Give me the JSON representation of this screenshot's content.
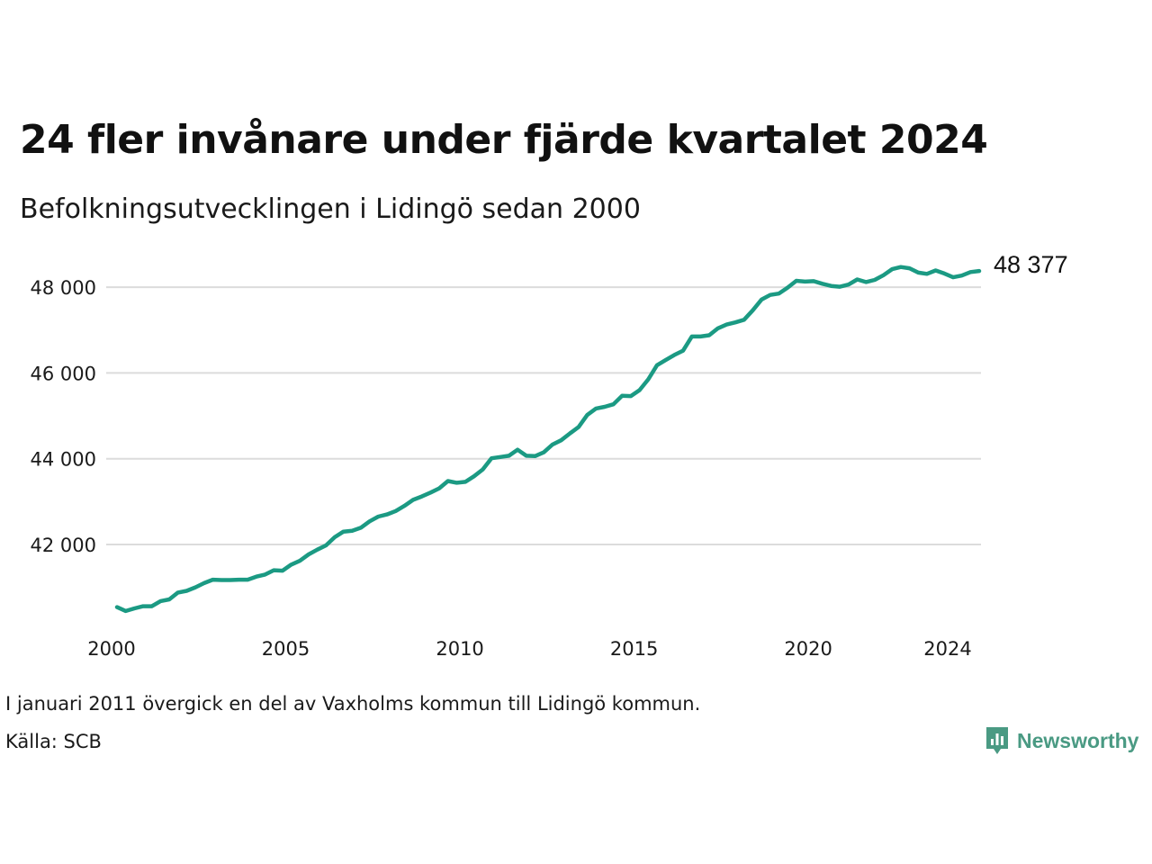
{
  "title": "24 fler invånare under fjärde kvartalet 2024",
  "subtitle": "Befolkningsutvecklingen i Lidingö sedan 2000",
  "note": "I januari 2011 övergick en del av Vaxholms kommun till Lidingö kommun.",
  "source": "Källa: SCB",
  "brand": {
    "name": "Newsworthy",
    "icon": "newsworthy-logo-icon",
    "color": "#4a9a83"
  },
  "chart_data": {
    "type": "line",
    "x_ticks": [
      "2000",
      "2005",
      "2010",
      "2015",
      "2020",
      "2024"
    ],
    "y_ticks": [
      "42 000",
      "44 000",
      "46 000",
      "48 000"
    ],
    "ylim": [
      40200,
      49000
    ],
    "grid": true,
    "line_color": "#1b9a83",
    "end_label": "48 377",
    "series": [
      {
        "x": [
          "2000Q1",
          "2000Q2",
          "2000Q3",
          "2000Q4",
          "2001Q1",
          "2001Q2",
          "2001Q3",
          "2001Q4",
          "2002Q1",
          "2002Q2",
          "2002Q3",
          "2002Q4",
          "2003Q1",
          "2003Q2",
          "2003Q3",
          "2003Q4",
          "2004Q1",
          "2004Q2",
          "2004Q3",
          "2004Q4",
          "2005Q1",
          "2005Q2",
          "2005Q3",
          "2005Q4",
          "2006Q1",
          "2006Q2",
          "2006Q3",
          "2006Q4",
          "2007Q1",
          "2007Q2",
          "2007Q3",
          "2007Q4",
          "2008Q1",
          "2008Q2",
          "2008Q3",
          "2008Q4",
          "2009Q1",
          "2009Q2",
          "2009Q3",
          "2009Q4",
          "2010Q1",
          "2010Q2",
          "2010Q3",
          "2010Q4",
          "2011Q1",
          "2011Q2",
          "2011Q3",
          "2011Q4",
          "2012Q1",
          "2012Q2",
          "2012Q3",
          "2012Q4",
          "2013Q1",
          "2013Q2",
          "2013Q3",
          "2013Q4",
          "2014Q1",
          "2014Q2",
          "2014Q3",
          "2014Q4",
          "2015Q1",
          "2015Q2",
          "2015Q3",
          "2015Q4",
          "2016Q1",
          "2016Q2",
          "2016Q3",
          "2016Q4",
          "2017Q1",
          "2017Q2",
          "2017Q3",
          "2017Q4",
          "2018Q1",
          "2018Q2",
          "2018Q3",
          "2018Q4",
          "2019Q1",
          "2019Q2",
          "2019Q3",
          "2019Q4",
          "2020Q1",
          "2020Q2",
          "2020Q3",
          "2020Q4",
          "2021Q1",
          "2021Q2",
          "2021Q3",
          "2021Q4",
          "2022Q1",
          "2022Q2",
          "2022Q3",
          "2022Q4",
          "2023Q1",
          "2023Q2",
          "2023Q3",
          "2023Q4",
          "2024Q1",
          "2024Q2",
          "2024Q3",
          "2024Q4"
        ],
        "values": [
          40540,
          40450,
          40510,
          40560,
          40560,
          40680,
          40720,
          40880,
          40920,
          41000,
          41100,
          41180,
          41170,
          41170,
          41180,
          41180,
          41250,
          41300,
          41400,
          41390,
          41530,
          41620,
          41770,
          41880,
          41980,
          42170,
          42300,
          42320,
          42390,
          42540,
          42650,
          42700,
          42780,
          42900,
          43040,
          43120,
          43210,
          43310,
          43480,
          43440,
          43460,
          43590,
          43750,
          44010,
          44040,
          44070,
          44210,
          44070,
          44060,
          44150,
          44330,
          44430,
          44590,
          44740,
          45020,
          45170,
          45210,
          45270,
          45470,
          45460,
          45600,
          45850,
          46180,
          46300,
          46420,
          46520,
          46850,
          46850,
          46880,
          47040,
          47130,
          47180,
          47240,
          47460,
          47710,
          47820,
          47850,
          47990,
          48150,
          48130,
          48140,
          48080,
          48030,
          48010,
          48060,
          48180,
          48120,
          48170,
          48280,
          48420,
          48470,
          48440,
          48340,
          48310,
          48390,
          48320,
          48230,
          48270,
          48353,
          48377
        ]
      }
    ]
  }
}
